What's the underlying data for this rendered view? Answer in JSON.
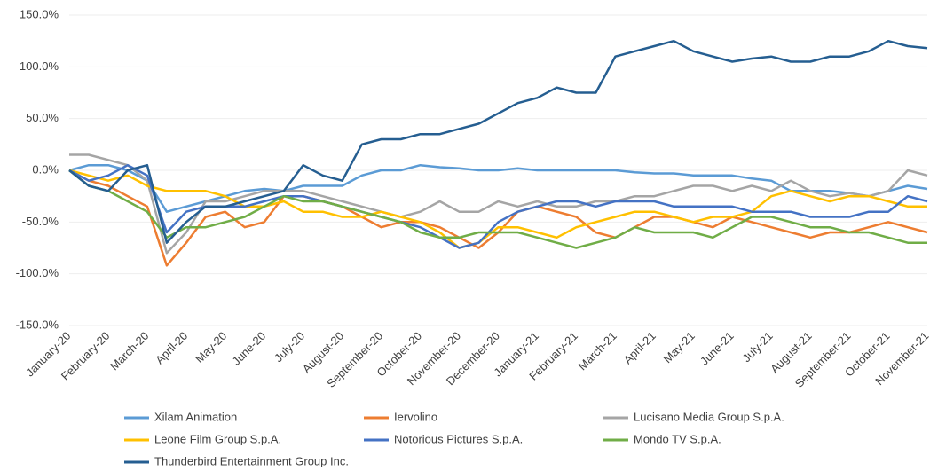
{
  "chart_data": {
    "type": "line",
    "categories": [
      "January-20",
      null,
      "February-20",
      null,
      "March-20",
      null,
      "April-20",
      null,
      "May-20",
      null,
      "June-20",
      null,
      "July-20",
      null,
      "August-20",
      null,
      "September-20",
      null,
      "October-20",
      null,
      "November-20",
      null,
      "December-20",
      null,
      "January-21",
      null,
      "February-21",
      null,
      "March-21",
      null,
      "April-21",
      null,
      "May-21",
      null,
      "June-21",
      null,
      "July-21",
      null,
      "August-21",
      null,
      "September-21",
      null,
      "October-21",
      null,
      "November-21"
    ],
    "series": [
      {
        "name": "Xilam Animation",
        "color": "#5b9bd5",
        "values": [
          0,
          5,
          5,
          0,
          -10,
          -40,
          -35,
          -30,
          -25,
          -20,
          -18,
          -20,
          -15,
          -15,
          -15,
          -5,
          0,
          0,
          5,
          3,
          2,
          0,
          0,
          2,
          0,
          0,
          0,
          0,
          0,
          -2,
          -3,
          -3,
          -5,
          -5,
          -5,
          -8,
          -10,
          -20,
          -20,
          -20,
          -22,
          -25,
          -20,
          -15,
          -18
        ]
      },
      {
        "name": "Iervolino",
        "color": "#ed7d31",
        "values": [
          0,
          -10,
          -15,
          -25,
          -35,
          -92,
          -70,
          -45,
          -40,
          -55,
          -50,
          -25,
          -25,
          -30,
          -35,
          -45,
          -55,
          -50,
          -50,
          -55,
          -65,
          -75,
          -60,
          -40,
          -35,
          -40,
          -45,
          -60,
          -65,
          -55,
          -45,
          -45,
          -50,
          -55,
          -45,
          -50,
          -55,
          -60,
          -65,
          -60,
          -60,
          -55,
          -50,
          -55,
          -60
        ]
      },
      {
        "name": "Lucisano Media Group S.p.A.",
        "color": "#a5a5a5",
        "values": [
          15,
          15,
          10,
          5,
          -10,
          -80,
          -60,
          -30,
          -30,
          -25,
          -20,
          -20,
          -20,
          -25,
          -30,
          -35,
          -40,
          -45,
          -40,
          -30,
          -40,
          -40,
          -30,
          -35,
          -30,
          -35,
          -35,
          -30,
          -30,
          -25,
          -25,
          -20,
          -15,
          -15,
          -20,
          -15,
          -20,
          -10,
          -20,
          -25,
          -22,
          -25,
          -20,
          0,
          -5
        ]
      },
      {
        "name": "Leone Film Group S.p.A.",
        "color": "#ffc000",
        "values": [
          0,
          -5,
          -10,
          -5,
          -15,
          -20,
          -20,
          -20,
          -25,
          -35,
          -35,
          -30,
          -40,
          -40,
          -45,
          -45,
          -40,
          -45,
          -50,
          -60,
          -75,
          -70,
          -55,
          -55,
          -60,
          -65,
          -55,
          -50,
          -45,
          -40,
          -40,
          -45,
          -50,
          -45,
          -45,
          -40,
          -25,
          -20,
          -25,
          -30,
          -25,
          -25,
          -30,
          -35,
          -35
        ]
      },
      {
        "name": "Notorious Pictures S.p.A.",
        "color": "#4472c4",
        "values": [
          0,
          -10,
          -5,
          5,
          -5,
          -60,
          -40,
          -35,
          -35,
          -35,
          -30,
          -25,
          -25,
          -30,
          -35,
          -40,
          -45,
          -50,
          -55,
          -65,
          -75,
          -70,
          -50,
          -40,
          -35,
          -30,
          -30,
          -35,
          -30,
          -30,
          -30,
          -35,
          -35,
          -35,
          -35,
          -40,
          -40,
          -40,
          -45,
          -45,
          -45,
          -40,
          -40,
          -25,
          -30
        ]
      },
      {
        "name": "Mondo TV S.p.A.",
        "color": "#70ad47",
        "values": [
          0,
          -15,
          -20,
          -30,
          -40,
          -65,
          -55,
          -55,
          -50,
          -45,
          -35,
          -25,
          -30,
          -30,
          -35,
          -40,
          -45,
          -50,
          -60,
          -65,
          -65,
          -60,
          -60,
          -60,
          -65,
          -70,
          -75,
          -70,
          -65,
          -55,
          -60,
          -60,
          -60,
          -65,
          -55,
          -45,
          -45,
          -50,
          -55,
          -55,
          -60,
          -60,
          -65,
          -70,
          -70
        ]
      },
      {
        "name": "Thunderbird Entertainment Group Inc.",
        "color": "#255e91",
        "values": [
          0,
          -15,
          -20,
          0,
          5,
          -70,
          -50,
          -35,
          -35,
          -30,
          -25,
          -20,
          5,
          -5,
          -10,
          25,
          30,
          30,
          35,
          35,
          40,
          45,
          55,
          65,
          70,
          80,
          75,
          75,
          110,
          115,
          120,
          125,
          115,
          110,
          105,
          108,
          110,
          105,
          105,
          110,
          110,
          115,
          125,
          120,
          118
        ]
      }
    ],
    "ylim": [
      -150,
      150
    ],
    "yticks": [
      {
        "value": -150,
        "label": "-150.0%"
      },
      {
        "value": -100,
        "label": "-100.0%"
      },
      {
        "value": -50,
        "label": "-50.0%"
      },
      {
        "value": 0,
        "label": "0.0%"
      },
      {
        "value": 50,
        "label": "50.0%"
      },
      {
        "value": 100,
        "label": "100.0%"
      },
      {
        "value": 150,
        "label": "150.0%"
      }
    ],
    "grid": true
  }
}
